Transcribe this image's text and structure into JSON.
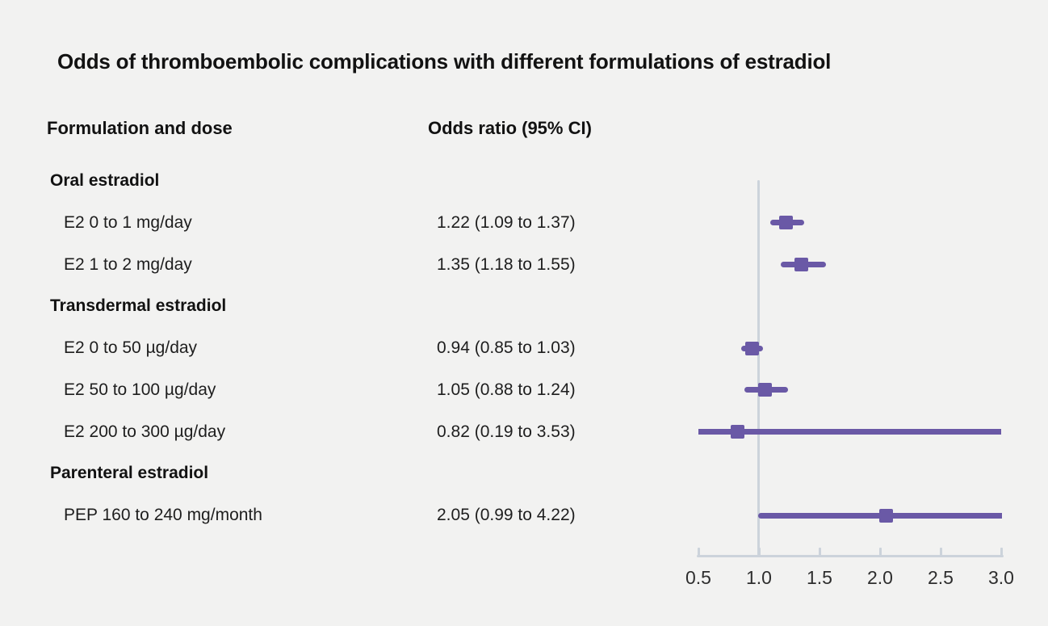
{
  "title": "Odds of thromboembolic complications with different formulations of estradiol",
  "columns": {
    "formulation": "Formulation and dose",
    "odds_ratio": "Odds ratio (95% CI)"
  },
  "rows": [
    {
      "type": "group",
      "label": "Oral estradiol"
    },
    {
      "type": "item",
      "label": "E2 0 to 1 mg/day",
      "value_text": "1.22 (1.09 to 1.37)",
      "or": 1.22,
      "ci_low": 1.09,
      "ci_high": 1.37
    },
    {
      "type": "item",
      "label": "E2 1 to 2 mg/day",
      "value_text": "1.35 (1.18 to 1.55)",
      "or": 1.35,
      "ci_low": 1.18,
      "ci_high": 1.55
    },
    {
      "type": "group",
      "label": "Transdermal estradiol"
    },
    {
      "type": "item",
      "label": "E2 0 to 50 µg/day",
      "value_text": "0.94 (0.85 to 1.03)",
      "or": 0.94,
      "ci_low": 0.85,
      "ci_high": 1.03
    },
    {
      "type": "item",
      "label": "E2 50 to 100 µg/day",
      "value_text": "1.05 (0.88 to 1.24)",
      "or": 1.05,
      "ci_low": 0.88,
      "ci_high": 1.24
    },
    {
      "type": "item",
      "label": "E2 200 to 300 µg/day",
      "value_text": "0.82 (0.19 to 3.53)",
      "or": 0.82,
      "ci_low": 0.19,
      "ci_high": 3.53
    },
    {
      "type": "group",
      "label": "Parenteral estradiol"
    },
    {
      "type": "item",
      "label": "PEP 160 to 240 mg/month",
      "value_text": "2.05 (0.99 to 4.22)",
      "or": 2.05,
      "ci_low": 0.99,
      "ci_high": 4.22
    }
  ],
  "axis": {
    "tick_labels": [
      "0.5",
      "1.0",
      "1.5",
      "2.0",
      "2.5",
      "3.0"
    ],
    "tick_values": [
      0.5,
      1.0,
      1.5,
      2.0,
      2.5,
      3.0
    ],
    "min": 0.5,
    "max": 3.0,
    "reference_value": 1.0
  },
  "colors": {
    "background": "#f2f2f1",
    "marker": "#6a59a6",
    "ci_line": "#6a59a6",
    "axis_line": "#ccd3db",
    "reference_line": "#ccd3db",
    "title_text": "#121212",
    "body_text": "#1e1e1e",
    "tick_text": "#2e2e2e"
  },
  "chart_data": {
    "type": "scatter",
    "subtype": "forest-plot",
    "title": "Odds of thromboembolic complications with different formulations of estradiol",
    "xlabel": "Odds ratio (95% CI)",
    "xlim": [
      0.5,
      3.0
    ],
    "x_ticks": [
      0.5,
      1.0,
      1.5,
      2.0,
      2.5,
      3.0
    ],
    "reference_line_x": 1.0,
    "grid": false,
    "legend": false,
    "note": "CI bars are clipped at the axis limits (0.5 and 3.0)",
    "groups": [
      {
        "name": "Oral estradiol",
        "items": [
          {
            "label": "E2 0 to 1 mg/day",
            "odds_ratio": 1.22,
            "ci_low": 1.09,
            "ci_high": 1.37
          },
          {
            "label": "E2 1 to 2 mg/day",
            "odds_ratio": 1.35,
            "ci_low": 1.18,
            "ci_high": 1.55
          }
        ]
      },
      {
        "name": "Transdermal estradiol",
        "items": [
          {
            "label": "E2 0 to 50 µg/day",
            "odds_ratio": 0.94,
            "ci_low": 0.85,
            "ci_high": 1.03
          },
          {
            "label": "E2 50 to 100 µg/day",
            "odds_ratio": 1.05,
            "ci_low": 0.88,
            "ci_high": 1.24
          },
          {
            "label": "E2 200 to 300 µg/day",
            "odds_ratio": 0.82,
            "ci_low": 0.19,
            "ci_high": 3.53
          }
        ]
      },
      {
        "name": "Parenteral estradiol",
        "items": [
          {
            "label": "PEP 160 to 240 mg/month",
            "odds_ratio": 2.05,
            "ci_low": 0.99,
            "ci_high": 4.22
          }
        ]
      }
    ]
  }
}
